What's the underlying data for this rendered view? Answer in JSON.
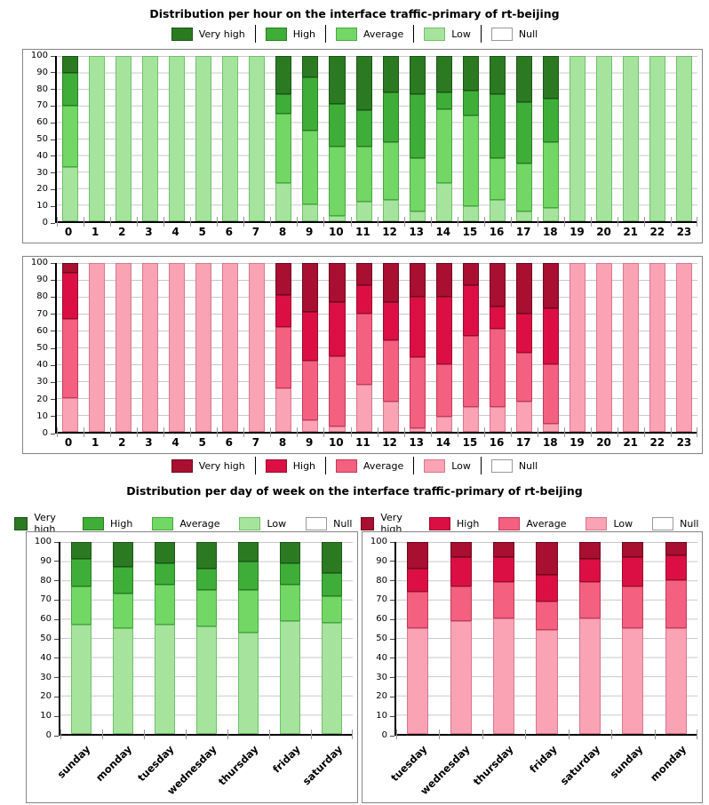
{
  "legend": {
    "labels": [
      "Very high",
      "High",
      "Average",
      "Low",
      "Null"
    ],
    "keys": [
      "very_high",
      "high",
      "average",
      "low",
      "null"
    ]
  },
  "palettes": {
    "green": {
      "very_high": {
        "fill": "#2b7a22",
        "border": "#1c5417"
      },
      "high": {
        "fill": "#3fae38",
        "border": "#267d23"
      },
      "average": {
        "fill": "#72d765",
        "border": "#47a841"
      },
      "low": {
        "fill": "#a6e49e",
        "border": "#6fbf68"
      },
      "null": {
        "fill": "#ffffff",
        "border": "#999999"
      }
    },
    "red": {
      "very_high": {
        "fill": "#a80f31",
        "border": "#70081f"
      },
      "high": {
        "fill": "#dc0f44",
        "border": "#9c0a2e"
      },
      "average": {
        "fill": "#f4607f",
        "border": "#c23a5c"
      },
      "low": {
        "fill": "#f9a3b5",
        "border": "#d9768d"
      },
      "null": {
        "fill": "#ffffff",
        "border": "#999999"
      }
    }
  },
  "chart_data": [
    {
      "type": "bar",
      "stacked": true,
      "palette": "green",
      "title": "Distribution per hour on the interface traffic-primary of rt-beijing",
      "legend_position": "top",
      "grid": true,
      "ylim": [
        0,
        100
      ],
      "ytick_step": 10,
      "rotated_labels": false,
      "categories": [
        "0",
        "1",
        "2",
        "3",
        "4",
        "5",
        "6",
        "7",
        "8",
        "9",
        "10",
        "11",
        "12",
        "13",
        "14",
        "15",
        "16",
        "17",
        "18",
        "19",
        "20",
        "21",
        "22",
        "23"
      ],
      "series": [
        {
          "name": "Low",
          "key": "low",
          "values": [
            33,
            100,
            100,
            100,
            100,
            100,
            100,
            100,
            23,
            10,
            3,
            12,
            13,
            6,
            23,
            9,
            13,
            6,
            8,
            100,
            100,
            100,
            100,
            100
          ]
        },
        {
          "name": "Average",
          "key": "average",
          "values": [
            37,
            0,
            0,
            0,
            0,
            0,
            0,
            0,
            42,
            45,
            42,
            33,
            35,
            32,
            45,
            55,
            25,
            29,
            40,
            0,
            0,
            0,
            0,
            0
          ]
        },
        {
          "name": "High",
          "key": "high",
          "values": [
            20,
            0,
            0,
            0,
            0,
            0,
            0,
            0,
            12,
            32,
            26,
            22,
            30,
            39,
            10,
            15,
            39,
            37,
            26,
            0,
            0,
            0,
            0,
            0
          ]
        },
        {
          "name": "Very high",
          "key": "very_high",
          "values": [
            10,
            0,
            0,
            0,
            0,
            0,
            0,
            0,
            23,
            13,
            29,
            33,
            22,
            23,
            22,
            21,
            23,
            28,
            26,
            0,
            0,
            0,
            0,
            0
          ]
        },
        {
          "name": "Null",
          "key": "null",
          "values": [
            0,
            0,
            0,
            0,
            0,
            0,
            0,
            0,
            0,
            0,
            0,
            0,
            0,
            0,
            0,
            0,
            0,
            0,
            0,
            0,
            0,
            0,
            0,
            0
          ]
        }
      ]
    },
    {
      "type": "bar",
      "stacked": true,
      "palette": "red",
      "title": "Distribution per hour on the interface traffic-primary of rt-beijing",
      "legend_position": "bottom",
      "grid": true,
      "ylim": [
        0,
        100
      ],
      "ytick_step": 10,
      "rotated_labels": false,
      "categories": [
        "0",
        "1",
        "2",
        "3",
        "4",
        "5",
        "6",
        "7",
        "8",
        "9",
        "10",
        "11",
        "12",
        "13",
        "14",
        "15",
        "16",
        "17",
        "18",
        "19",
        "20",
        "21",
        "22",
        "23"
      ],
      "series": [
        {
          "name": "Low",
          "key": "low",
          "values": [
            20,
            100,
            100,
            100,
            100,
            100,
            100,
            100,
            26,
            7,
            3,
            28,
            18,
            2,
            9,
            15,
            15,
            18,
            5,
            100,
            100,
            100,
            100,
            100
          ]
        },
        {
          "name": "Average",
          "key": "average",
          "values": [
            47,
            0,
            0,
            0,
            0,
            0,
            0,
            0,
            36,
            35,
            42,
            42,
            36,
            42,
            31,
            42,
            46,
            29,
            35,
            0,
            0,
            0,
            0,
            0
          ]
        },
        {
          "name": "High",
          "key": "high",
          "values": [
            27,
            0,
            0,
            0,
            0,
            0,
            0,
            0,
            19,
            29,
            32,
            17,
            23,
            36,
            40,
            30,
            13,
            23,
            33,
            0,
            0,
            0,
            0,
            0
          ]
        },
        {
          "name": "Very high",
          "key": "very_high",
          "values": [
            6,
            0,
            0,
            0,
            0,
            0,
            0,
            0,
            19,
            29,
            23,
            13,
            23,
            20,
            20,
            13,
            26,
            30,
            27,
            0,
            0,
            0,
            0,
            0
          ]
        },
        {
          "name": "Null",
          "key": "null",
          "values": [
            0,
            0,
            0,
            0,
            0,
            0,
            0,
            0,
            0,
            0,
            0,
            0,
            0,
            0,
            0,
            0,
            0,
            0,
            0,
            0,
            0,
            0,
            0,
            0
          ]
        }
      ]
    },
    {
      "type": "bar",
      "stacked": true,
      "palette": "green",
      "title": "Distribution per day of week on the interface traffic-primary of rt-beijing",
      "legend_position": "top",
      "grid": true,
      "ylim": [
        0,
        100
      ],
      "ytick_step": 10,
      "rotated_labels": true,
      "categories": [
        "sunday",
        "monday",
        "tuesday",
        "wednesday",
        "thursday",
        "friday",
        "saturday"
      ],
      "series": [
        {
          "name": "Low",
          "key": "low",
          "values": [
            57,
            55,
            57,
            56,
            53,
            59,
            58
          ]
        },
        {
          "name": "Average",
          "key": "average",
          "values": [
            20,
            18,
            21,
            19,
            22,
            19,
            14
          ]
        },
        {
          "name": "High",
          "key": "high",
          "values": [
            14,
            14,
            11,
            11,
            15,
            11,
            12
          ]
        },
        {
          "name": "Very high",
          "key": "very_high",
          "values": [
            9,
            13,
            11,
            14,
            10,
            11,
            16
          ]
        },
        {
          "name": "Null",
          "key": "null",
          "values": [
            0,
            0,
            0,
            0,
            0,
            0,
            0
          ]
        }
      ]
    },
    {
      "type": "bar",
      "stacked": true,
      "palette": "red",
      "title": "Distribution per day of week on the interface traffic-primary of rt-beijing",
      "legend_position": "top",
      "grid": true,
      "ylim": [
        0,
        100
      ],
      "ytick_step": 10,
      "rotated_labels": true,
      "categories": [
        "tuesday",
        "wednesday",
        "thursday",
        "friday",
        "saturday",
        "sunday",
        "monday"
      ],
      "series": [
        {
          "name": "Low",
          "key": "low",
          "values": [
            55,
            59,
            60,
            54,
            60,
            55,
            55
          ]
        },
        {
          "name": "Average",
          "key": "average",
          "values": [
            19,
            18,
            19,
            15,
            19,
            22,
            25
          ]
        },
        {
          "name": "High",
          "key": "high",
          "values": [
            12,
            15,
            13,
            14,
            12,
            15,
            13
          ]
        },
        {
          "name": "Very high",
          "key": "very_high",
          "values": [
            14,
            8,
            8,
            17,
            9,
            8,
            7
          ]
        },
        {
          "name": "Null",
          "key": "null",
          "values": [
            0,
            0,
            0,
            0,
            0,
            0,
            0
          ]
        }
      ]
    }
  ]
}
